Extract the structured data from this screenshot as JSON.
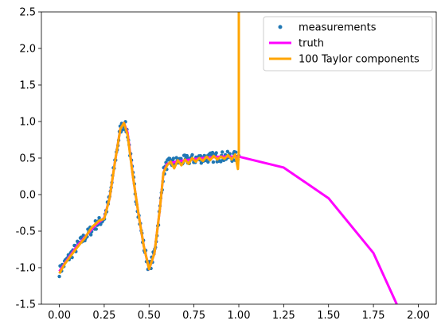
{
  "chart_data": {
    "type": "line",
    "title": "",
    "xlabel": "",
    "ylabel": "",
    "xlim": [
      -0.1,
      2.1
    ],
    "ylim": [
      -1.5,
      2.5
    ],
    "grid": false,
    "legend_placement": "top-right",
    "x_ticks": [
      "0.00",
      "0.25",
      "0.50",
      "0.75",
      "1.00",
      "1.25",
      "1.50",
      "1.75",
      "2.00"
    ],
    "y_ticks": [
      "-1.5",
      "-1.0",
      "-0.5",
      "0.0",
      "0.5",
      "1.0",
      "1.5",
      "2.0",
      "2.5"
    ],
    "series": [
      {
        "name": "measurements",
        "kind": "scatter",
        "color": "#1f77b4",
        "x_range": [
          0.0,
          1.0
        ],
        "note_points": "dense noisy samples of the truth curve on [0,1]"
      },
      {
        "name": "truth",
        "kind": "line",
        "color": "#ff00ff",
        "x": [
          0.0,
          0.05,
          0.1,
          0.15,
          0.2,
          0.25,
          0.28,
          0.31,
          0.34,
          0.36,
          0.38,
          0.41,
          0.44,
          0.47,
          0.5,
          0.53,
          0.56,
          0.58,
          0.6,
          0.65,
          0.7,
          0.8,
          0.9,
          1.0,
          1.25,
          1.5,
          1.75,
          1.88
        ],
        "y": [
          -1.05,
          -0.87,
          -0.7,
          -0.56,
          -0.42,
          -0.32,
          -0.05,
          0.45,
          0.9,
          0.98,
          0.85,
          0.25,
          -0.25,
          -0.7,
          -1.02,
          -0.8,
          -0.2,
          0.3,
          0.42,
          0.45,
          0.47,
          0.5,
          0.52,
          0.52,
          0.37,
          -0.05,
          -0.8,
          -1.5
        ]
      },
      {
        "name": "100 Taylor components",
        "kind": "line",
        "color": "#ffa500",
        "x": [
          0.0,
          0.03,
          0.06,
          0.1,
          0.14,
          0.18,
          0.22,
          0.25,
          0.28,
          0.31,
          0.34,
          0.36,
          0.38,
          0.41,
          0.44,
          0.47,
          0.5,
          0.53,
          0.56,
          0.58,
          0.6,
          0.62,
          0.64,
          0.66,
          0.68,
          0.7,
          0.72,
          0.74,
          0.76,
          0.78,
          0.8,
          0.82,
          0.84,
          0.86,
          0.88,
          0.9,
          0.92,
          0.94,
          0.96,
          0.98,
          0.995,
          1.0,
          1.0
        ],
        "y": [
          -1.08,
          -0.95,
          -0.85,
          -0.72,
          -0.6,
          -0.45,
          -0.36,
          -0.33,
          -0.05,
          0.45,
          0.9,
          0.98,
          0.82,
          0.25,
          -0.25,
          -0.7,
          -1.02,
          -0.8,
          -0.2,
          0.3,
          0.4,
          0.45,
          0.36,
          0.47,
          0.4,
          0.48,
          0.42,
          0.5,
          0.45,
          0.5,
          0.46,
          0.52,
          0.47,
          0.53,
          0.48,
          0.52,
          0.49,
          0.54,
          0.48,
          0.55,
          0.35,
          0.6,
          2.5
        ]
      }
    ]
  }
}
